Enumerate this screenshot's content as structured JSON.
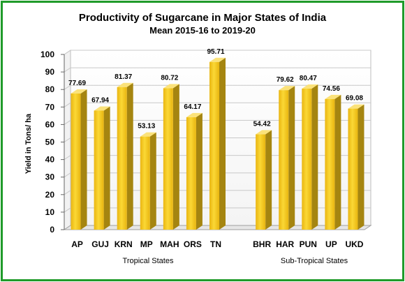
{
  "colors": {
    "border": "#1f9b2a",
    "bar_front": "#f7cc1e",
    "bar_side": "#a58510",
    "bar_top": "#fbe27a",
    "grid": "#c8c8c8"
  },
  "chart_data": {
    "type": "bar",
    "title": "Productivity of Sugarcane in Major  States of India",
    "subtitle": "Mean 2015-16 to 2019-20",
    "ylabel": "Yield in Tons/ ha",
    "ylim": [
      0,
      100
    ],
    "yticks": [
      0,
      10,
      20,
      30,
      40,
      50,
      60,
      70,
      80,
      90,
      100
    ],
    "grid": true,
    "groups": [
      {
        "label": "Tropical States",
        "categories": [
          "AP",
          "GUJ",
          "KRN",
          "MP",
          "MAH",
          "ORS",
          "TN"
        ]
      },
      {
        "label": "Sub-Tropical States",
        "categories": [
          "BHR",
          "HAR",
          "PUN",
          "UP",
          "UKD"
        ]
      }
    ],
    "categories": [
      "AP",
      "GUJ",
      "KRN",
      "MP",
      "MAH",
      "ORS",
      "TN",
      "BHR",
      "HAR",
      "PUN",
      "UP",
      "UKD"
    ],
    "values": [
      77.69,
      67.94,
      81.37,
      53.13,
      80.72,
      64.17,
      95.71,
      54.42,
      79.62,
      80.47,
      74.56,
      69.08
    ],
    "value_labels": [
      "77.69",
      "67.94",
      "81.37",
      "53.13",
      "80.72",
      "64.17",
      "95.71",
      "54.42",
      "79.62",
      "80.47",
      "74.56",
      "69.08"
    ]
  }
}
